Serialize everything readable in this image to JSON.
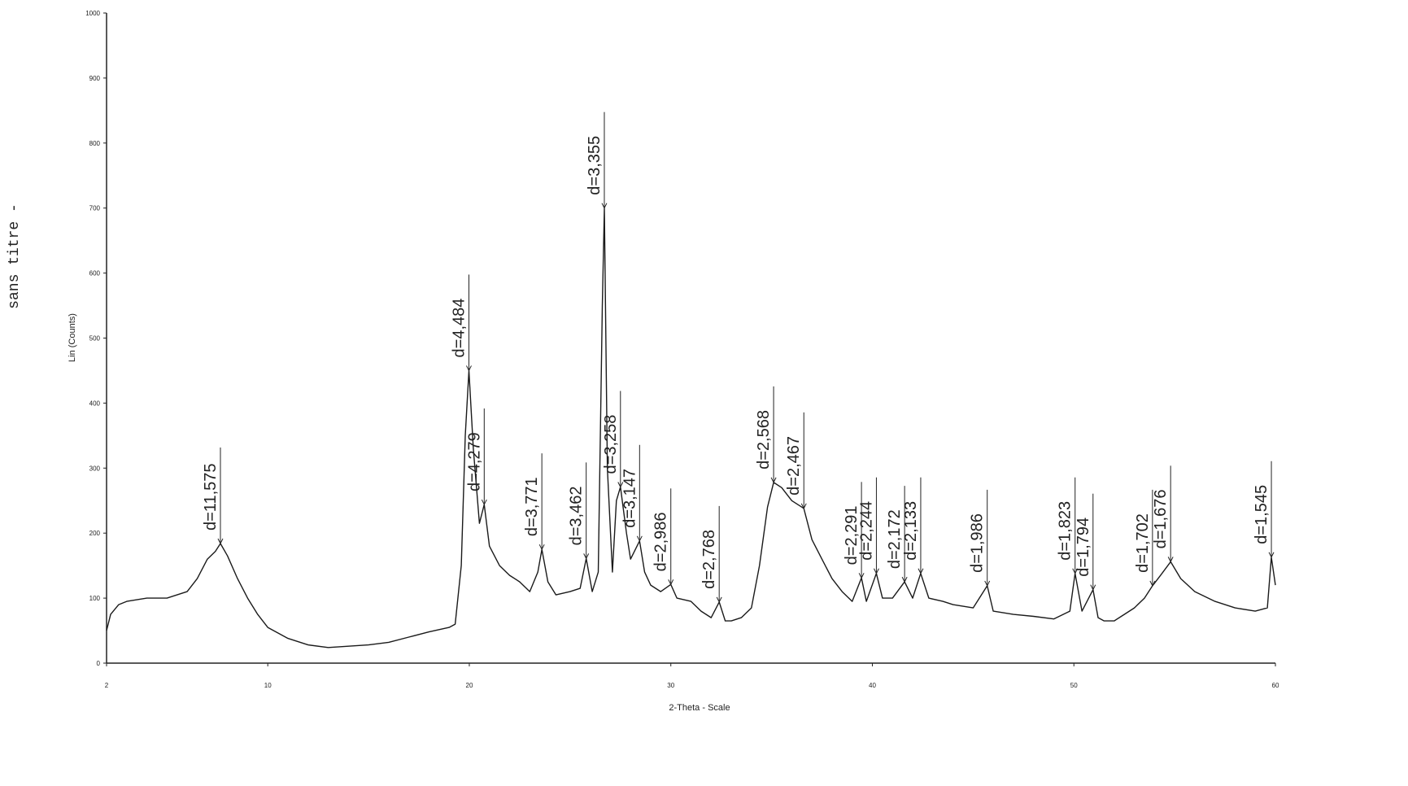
{
  "chart_data": {
    "type": "line",
    "page_label": "sans titre -",
    "y_label": "Lin (Counts)",
    "x_label": "2-Theta - Scale",
    "color": "#1a1a1a",
    "xlim": [
      2,
      60
    ],
    "ylim": [
      0,
      1000
    ],
    "xticks": [
      2,
      10,
      20,
      30,
      40,
      50,
      60
    ],
    "yticks": [
      0,
      100,
      200,
      300,
      400,
      500,
      600,
      700,
      800,
      900,
      1000
    ],
    "x": [
      2.0,
      2.2,
      2.6,
      3,
      4,
      5,
      6,
      6.5,
      7,
      7.4,
      7.65,
      8,
      8.5,
      9,
      9.5,
      10,
      11,
      12,
      13,
      14,
      15,
      16,
      17,
      18,
      19,
      19.3,
      19.6,
      19.8,
      19.98,
      20.2,
      20.5,
      20.74,
      21,
      21.5,
      22,
      22.5,
      23,
      23.4,
      23.6,
      23.9,
      24.3,
      25,
      25.5,
      25.8,
      26.1,
      26.4,
      26.6,
      26.7,
      26.85,
      27.1,
      27.3,
      27.5,
      27.8,
      28.0,
      28.45,
      28.7,
      29,
      29.5,
      30,
      30.3,
      31,
      31.5,
      32,
      32.4,
      32.7,
      33,
      33.5,
      34,
      34.4,
      34.8,
      35.1,
      35.5,
      36,
      36.6,
      37,
      37.5,
      38,
      38.5,
      39,
      39.46,
      39.7,
      40.2,
      40.5,
      41,
      41.6,
      42,
      42.4,
      42.8,
      43.5,
      44,
      45,
      45.7,
      46,
      47,
      48,
      49,
      49.8,
      50.06,
      50.4,
      50.95,
      51.2,
      51.5,
      52,
      52.5,
      53,
      53.5,
      53.9,
      54.3,
      54.8,
      55.3,
      56,
      57,
      58,
      59,
      59.6,
      59.8,
      60
    ],
    "values": [
      50,
      75,
      90,
      95,
      100,
      100,
      110,
      130,
      160,
      172,
      184,
      165,
      130,
      100,
      75,
      55,
      38,
      28,
      24,
      26,
      28,
      32,
      40,
      48,
      55,
      60,
      150,
      350,
      450,
      330,
      215,
      244,
      180,
      150,
      135,
      125,
      110,
      140,
      175,
      125,
      105,
      110,
      115,
      161,
      110,
      140,
      550,
      700,
      300,
      140,
      250,
      271,
      200,
      160,
      188,
      140,
      120,
      110,
      121,
      100,
      95,
      80,
      70,
      94,
      65,
      65,
      70,
      85,
      150,
      240,
      278,
      270,
      250,
      238,
      190,
      160,
      130,
      110,
      95,
      131,
      95,
      138,
      100,
      100,
      125,
      100,
      138,
      100,
      95,
      90,
      85,
      119,
      80,
      75,
      72,
      68,
      80,
      138,
      80,
      113,
      70,
      65,
      65,
      75,
      85,
      100,
      119,
      135,
      156,
      130,
      110,
      95,
      85,
      80,
      85,
      163,
      120
    ],
    "annotations": [
      {
        "text": "d=11,575",
        "x": 7.65,
        "y": 184
      },
      {
        "text": "d=4,484",
        "x": 19.98,
        "y": 450
      },
      {
        "text": "d=4,279",
        "x": 20.74,
        "y": 244
      },
      {
        "text": "d=3,771",
        "x": 23.6,
        "y": 175
      },
      {
        "text": "d=3,462",
        "x": 25.8,
        "y": 161
      },
      {
        "text": "d=3,355",
        "x": 26.7,
        "y": 700
      },
      {
        "text": "d=3,258",
        "x": 27.5,
        "y": 271
      },
      {
        "text": "d=3,147",
        "x": 28.45,
        "y": 188
      },
      {
        "text": "d=2,986",
        "x": 30,
        "y": 121
      },
      {
        "text": "d=2,768",
        "x": 32.4,
        "y": 94
      },
      {
        "text": "d=2,568",
        "x": 35.1,
        "y": 278
      },
      {
        "text": "d=2,467",
        "x": 36.6,
        "y": 238
      },
      {
        "text": "d=2,291",
        "x": 39.46,
        "y": 131
      },
      {
        "text": "d=2,244",
        "x": 40.2,
        "y": 138
      },
      {
        "text": "d=2,172",
        "x": 41.6,
        "y": 125
      },
      {
        "text": "d=2,133",
        "x": 42.4,
        "y": 138
      },
      {
        "text": "d=1,986",
        "x": 45.7,
        "y": 119
      },
      {
        "text": "d=1,823",
        "x": 50.06,
        "y": 138
      },
      {
        "text": "d=1,794",
        "x": 50.95,
        "y": 113
      },
      {
        "text": "d=1,702",
        "x": 53.9,
        "y": 119
      },
      {
        "text": "d=1,676",
        "x": 54.8,
        "y": 156
      },
      {
        "text": "d=1,545",
        "x": 59.8,
        "y": 163
      }
    ]
  }
}
